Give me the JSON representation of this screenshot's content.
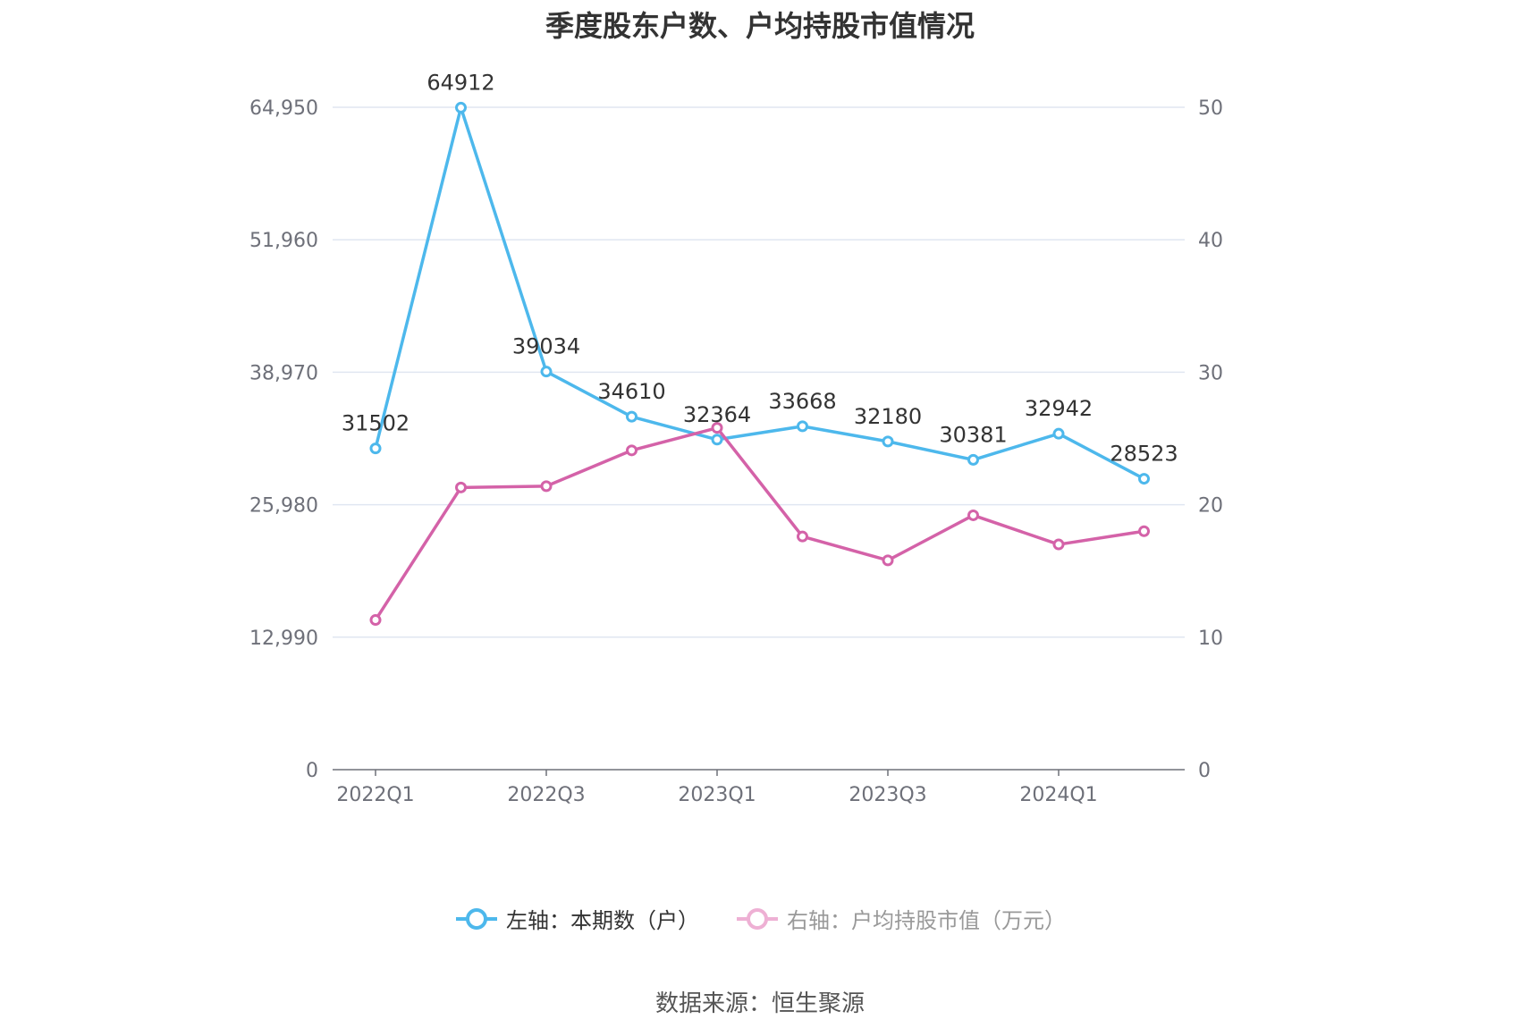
{
  "chart_data": {
    "type": "line",
    "title": "季度股东户数、户均持股市值情况",
    "categories": [
      "2022Q1",
      "2022Q2",
      "2022Q3",
      "2022Q4",
      "2023Q1",
      "2023Q2",
      "2023Q3",
      "2023Q4",
      "2024Q1",
      "2024Q2"
    ],
    "x_tick_labels": [
      "2022Q1",
      "2022Q3",
      "2023Q1",
      "2023Q3",
      "2024Q1"
    ],
    "left_axis": {
      "ticks": [
        "0",
        "12,990",
        "25,980",
        "38,970",
        "51,960",
        "64,950"
      ],
      "ylim": [
        0,
        64950
      ]
    },
    "right_axis": {
      "ticks": [
        "0",
        "10",
        "20",
        "30",
        "40",
        "50"
      ],
      "ylim": [
        0,
        50
      ]
    },
    "series": [
      {
        "name": "左轴：本期数（户）",
        "axis": "left",
        "color": "#4db8ec",
        "values": [
          31502,
          64912,
          39034,
          34610,
          32364,
          33668,
          32180,
          30381,
          32942,
          28523
        ],
        "labels": [
          "31502",
          "64912",
          "39034",
          "34610",
          "32364",
          "33668",
          "32180",
          "30381",
          "32942",
          "28523"
        ]
      },
      {
        "name": "右轴：户均持股市值（万元）",
        "axis": "right",
        "color": "#d462a8",
        "values": [
          11.3,
          21.3,
          21.4,
          24.1,
          25.8,
          17.6,
          15.8,
          19.2,
          17.0,
          18.0
        ]
      }
    ],
    "grid": true,
    "legend_position": "bottom"
  },
  "source": "数据来源：恒生聚源"
}
